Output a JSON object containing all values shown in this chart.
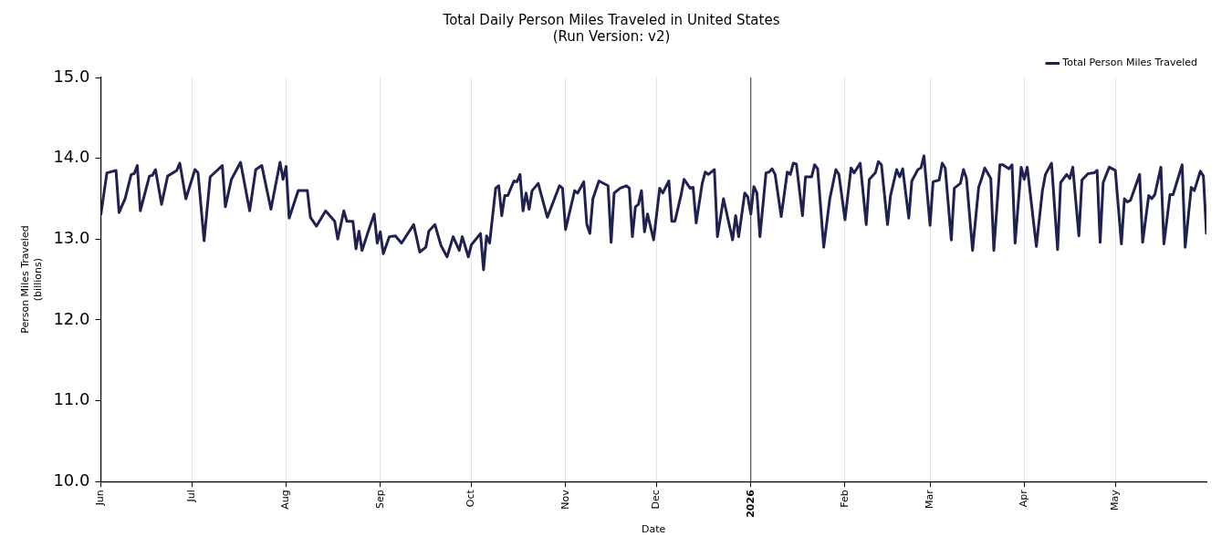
{
  "chart_data": {
    "type": "line",
    "title": "Total Daily Person Miles Traveled in United States",
    "subtitle": "(Run Version: v2)",
    "xlabel": "Date",
    "ylabel": "Person Miles Traveled\n(billions)",
    "x": [
      "2025-06-01",
      "2025-06-02",
      "2025-06-03",
      "2025-06-06",
      "2025-06-07",
      "2025-06-09",
      "2025-06-11",
      "2025-06-12",
      "2025-06-13",
      "2025-06-14",
      "2025-06-17",
      "2025-06-18",
      "2025-06-19",
      "2025-06-21",
      "2025-06-23",
      "2025-06-26",
      "2025-06-27",
      "2025-06-29",
      "2025-07-02",
      "2025-07-03",
      "2025-07-05",
      "2025-07-07",
      "2025-07-11",
      "2025-07-12",
      "2025-07-14",
      "2025-07-17",
      "2025-07-20",
      "2025-07-22",
      "2025-07-24",
      "2025-07-27",
      "2025-07-30",
      "2025-07-31",
      "2025-08-01",
      "2025-08-02",
      "2025-08-05",
      "2025-08-08",
      "2025-08-09",
      "2025-08-11",
      "2025-08-14",
      "2025-08-17",
      "2025-08-18",
      "2025-08-20",
      "2025-08-21",
      "2025-08-23",
      "2025-08-24",
      "2025-08-25",
      "2025-08-26",
      "2025-08-28",
      "2025-08-30",
      "2025-08-31",
      "2025-09-01",
      "2025-09-02",
      "2025-09-04",
      "2025-09-06",
      "2025-09-08",
      "2025-09-12",
      "2025-09-14",
      "2025-09-16",
      "2025-09-17",
      "2025-09-19",
      "2025-09-21",
      "2025-09-23",
      "2025-09-25",
      "2025-09-27",
      "2025-09-28",
      "2025-09-30",
      "2025-10-01",
      "2025-10-04",
      "2025-10-05",
      "2025-10-06",
      "2025-10-07",
      "2025-10-09",
      "2025-10-10",
      "2025-10-11",
      "2025-10-12",
      "2025-10-13",
      "2025-10-15",
      "2025-10-16",
      "2025-10-17",
      "2025-10-18",
      "2025-10-19",
      "2025-10-20",
      "2025-10-21",
      "2025-10-23",
      "2025-10-26",
      "2025-10-30",
      "2025-10-31",
      "2025-11-01",
      "2025-11-04",
      "2025-11-05",
      "2025-11-07",
      "2025-11-08",
      "2025-11-09",
      "2025-11-10",
      "2025-11-12",
      "2025-11-15",
      "2025-11-16",
      "2025-11-17",
      "2025-11-19",
      "2025-11-21",
      "2025-11-22",
      "2025-11-23",
      "2025-11-24",
      "2025-11-25",
      "2025-11-26",
      "2025-11-27",
      "2025-11-28",
      "2025-11-30",
      "2025-12-02",
      "2025-12-03",
      "2025-12-05",
      "2025-12-06",
      "2025-12-07",
      "2025-12-09",
      "2025-12-10",
      "2025-12-12",
      "2025-12-13",
      "2025-12-14",
      "2025-12-16",
      "2025-12-17",
      "2025-12-18",
      "2025-12-20",
      "2025-12-21",
      "2025-12-23",
      "2025-12-26",
      "2025-12-27",
      "2025-12-28",
      "2025-12-30",
      "2025-12-31",
      "2026-01-01",
      "2026-01-02",
      "2026-01-03",
      "2026-01-04",
      "2026-01-06",
      "2026-01-07",
      "2026-01-08",
      "2026-01-09",
      "2026-01-11",
      "2026-01-13",
      "2026-01-14",
      "2026-01-15",
      "2026-01-16",
      "2026-01-18",
      "2026-01-19",
      "2026-01-21",
      "2026-01-22",
      "2026-01-23",
      "2026-01-25",
      "2026-01-27",
      "2026-01-29",
      "2026-01-30",
      "2026-02-01",
      "2026-02-03",
      "2026-02-04",
      "2026-02-06",
      "2026-02-08",
      "2026-02-09",
      "2026-02-11",
      "2026-02-12",
      "2026-02-13",
      "2026-02-15",
      "2026-02-16",
      "2026-02-18",
      "2026-02-19",
      "2026-02-20",
      "2026-02-22",
      "2026-02-23",
      "2026-02-25",
      "2026-02-26",
      "2026-02-27",
      "2026-03-01",
      "2026-03-02",
      "2026-03-04",
      "2026-03-05",
      "2026-03-06",
      "2026-03-08",
      "2026-03-09",
      "2026-03-11",
      "2026-03-12",
      "2026-03-13",
      "2026-03-15",
      "2026-03-17",
      "2026-03-18",
      "2026-03-19",
      "2026-03-21",
      "2026-03-22",
      "2026-03-24",
      "2026-03-25",
      "2026-03-27",
      "2026-03-28",
      "2026-03-29",
      "2026-03-31",
      "2026-04-01",
      "2026-04-02",
      "2026-04-05",
      "2026-04-07",
      "2026-04-08",
      "2026-04-10",
      "2026-04-12",
      "2026-04-13",
      "2026-04-15",
      "2026-04-16",
      "2026-04-17",
      "2026-04-19",
      "2026-04-20",
      "2026-04-22",
      "2026-04-24",
      "2026-04-25",
      "2026-04-26",
      "2026-04-27",
      "2026-04-29",
      "2026-05-01",
      "2026-05-03",
      "2026-05-04",
      "2026-05-05",
      "2026-05-06",
      "2026-05-09",
      "2026-05-10",
      "2026-05-12",
      "2026-05-13",
      "2026-05-14",
      "2026-05-16",
      "2026-05-17",
      "2026-05-19",
      "2026-05-20",
      "2026-05-23",
      "2026-05-24",
      "2026-05-26",
      "2026-05-27",
      "2026-05-29",
      "2026-05-30",
      "2026-05-31"
    ],
    "series": [
      {
        "name": "Total Person Miles Traveled",
        "color": "#1f2150",
        "values": [
          13.3,
          13.56,
          13.82,
          13.85,
          13.33,
          13.5,
          13.8,
          13.81,
          13.91,
          13.35,
          13.78,
          13.79,
          13.86,
          13.43,
          13.78,
          13.85,
          13.94,
          13.5,
          13.86,
          13.82,
          12.98,
          13.77,
          13.91,
          13.4,
          13.74,
          13.95,
          13.35,
          13.86,
          13.91,
          13.37,
          13.95,
          13.74,
          13.9,
          13.26,
          13.6,
          13.6,
          13.27,
          13.16,
          13.35,
          13.22,
          13.0,
          13.35,
          13.22,
          13.22,
          12.88,
          13.1,
          12.86,
          13.09,
          13.31,
          12.95,
          13.09,
          12.82,
          13.03,
          13.04,
          12.95,
          13.18,
          12.84,
          12.9,
          13.1,
          13.18,
          12.92,
          12.78,
          13.03,
          12.86,
          13.03,
          12.78,
          12.93,
          13.07,
          12.62,
          13.04,
          12.95,
          13.63,
          13.66,
          13.29,
          13.54,
          13.54,
          13.72,
          13.71,
          13.8,
          13.35,
          13.57,
          13.37,
          13.6,
          13.69,
          13.27,
          13.66,
          13.63,
          13.12,
          13.6,
          13.57,
          13.71,
          13.18,
          13.07,
          13.5,
          13.72,
          13.66,
          12.96,
          13.57,
          13.63,
          13.66,
          13.63,
          13.03,
          13.4,
          13.43,
          13.6,
          13.09,
          13.31,
          12.99,
          13.63,
          13.57,
          13.72,
          13.22,
          13.22,
          13.54,
          13.74,
          13.63,
          13.64,
          13.2,
          13.69,
          13.83,
          13.8,
          13.86,
          13.03,
          13.5,
          12.99,
          13.29,
          13.03,
          13.57,
          13.52,
          13.31,
          13.65,
          13.57,
          13.03,
          13.82,
          13.83,
          13.87,
          13.8,
          13.28,
          13.83,
          13.8,
          13.94,
          13.93,
          13.29,
          13.77,
          13.77,
          13.92,
          13.87,
          12.9,
          13.5,
          13.86,
          13.8,
          13.24,
          13.88,
          13.82,
          13.94,
          13.18,
          13.74,
          13.82,
          13.96,
          13.92,
          13.18,
          13.54,
          13.86,
          13.77,
          13.87,
          13.26,
          13.72,
          13.86,
          13.88,
          14.03,
          13.17,
          13.71,
          13.73,
          13.94,
          13.88,
          12.99,
          13.63,
          13.69,
          13.86,
          13.75,
          12.86,
          13.64,
          13.75,
          13.88,
          13.75,
          12.86,
          13.92,
          13.92,
          13.87,
          13.92,
          12.95,
          13.89,
          13.74,
          13.89,
          12.91,
          13.6,
          13.8,
          13.94,
          12.87,
          13.7,
          13.8,
          13.75,
          13.89,
          13.04,
          13.73,
          13.81,
          13.82,
          13.85,
          12.96,
          13.7,
          13.89,
          13.85,
          12.94,
          13.5,
          13.46,
          13.48,
          13.8,
          12.96,
          13.54,
          13.5,
          13.55,
          13.89,
          12.94,
          13.55,
          13.55,
          13.92,
          12.9,
          13.64,
          13.6,
          13.84,
          13.78,
          13.06
        ]
      }
    ],
    "xlim": [
      "2025-06-01",
      "2026-05-31"
    ],
    "xticks": [
      {
        "value": "2025-06-01",
        "label": "Jun"
      },
      {
        "value": "2025-07-01",
        "label": "Jul"
      },
      {
        "value": "2025-08-01",
        "label": "Aug"
      },
      {
        "value": "2025-09-01",
        "label": "Sep"
      },
      {
        "value": "2025-10-01",
        "label": "Oct"
      },
      {
        "value": "2025-11-01",
        "label": "Nov"
      },
      {
        "value": "2025-12-01",
        "label": "Dec"
      },
      {
        "value": "2026-01-01",
        "label": "2026"
      },
      {
        "value": "2026-02-01",
        "label": "Feb"
      },
      {
        "value": "2026-03-01",
        "label": "Mar"
      },
      {
        "value": "2026-04-01",
        "label": "Apr"
      },
      {
        "value": "2026-05-01",
        "label": "May"
      }
    ],
    "ylim": [
      10,
      15
    ],
    "yticks": [
      {
        "value": 10,
        "label": "10.0"
      },
      {
        "value": 11,
        "label": "11.0"
      },
      {
        "value": 12,
        "label": "12.0"
      },
      {
        "value": 13,
        "label": "13.0"
      },
      {
        "value": 14,
        "label": "14.0"
      },
      {
        "value": 15,
        "label": "15.0"
      }
    ],
    "ref_lines": [
      {
        "axis": "x",
        "value": "2026-01-01",
        "color": "#333333"
      }
    ],
    "grid": "x",
    "legend": "top right",
    "marker": "none",
    "line_style": "solid"
  }
}
